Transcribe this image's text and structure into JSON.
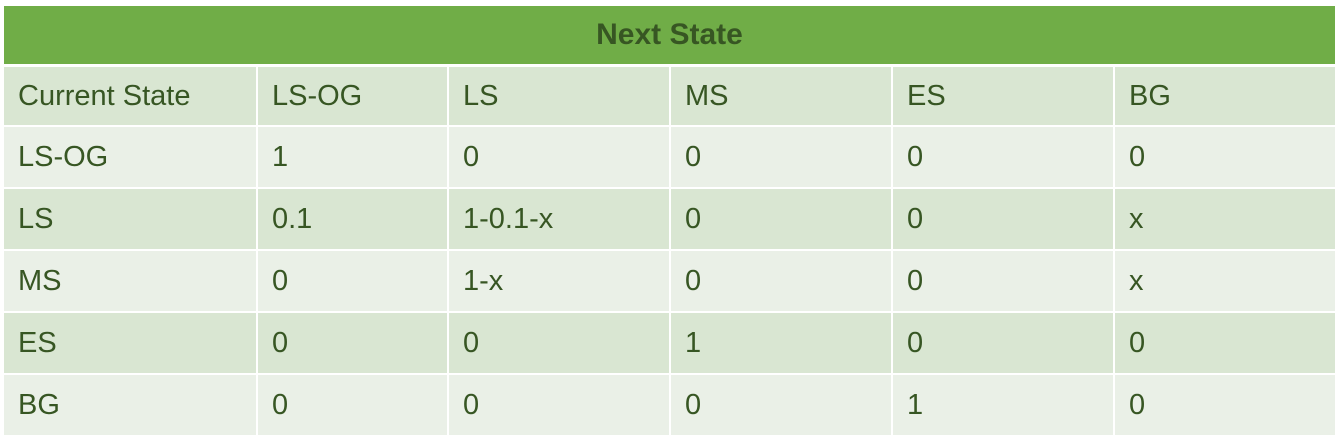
{
  "title": "Next State",
  "colors": {
    "header_bg": "#70ad47",
    "text": "#375623",
    "row_dark": "#d9e6d2",
    "row_light": "#eaf0e7"
  },
  "columns": [
    "Current State",
    "LS-OG",
    "LS",
    "MS",
    "ES",
    "BG"
  ],
  "rows": [
    [
      "LS-OG",
      "1",
      "0",
      "0",
      "0",
      "0"
    ],
    [
      "LS",
      "0.1",
      "1-0.1-x",
      "0",
      "0",
      "x"
    ],
    [
      "MS",
      "0",
      "1-x",
      "0",
      "0",
      "x"
    ],
    [
      "ES",
      "0",
      "0",
      "1",
      "0",
      "0"
    ],
    [
      "BG",
      "0",
      "0",
      "0",
      "1",
      "0"
    ]
  ]
}
